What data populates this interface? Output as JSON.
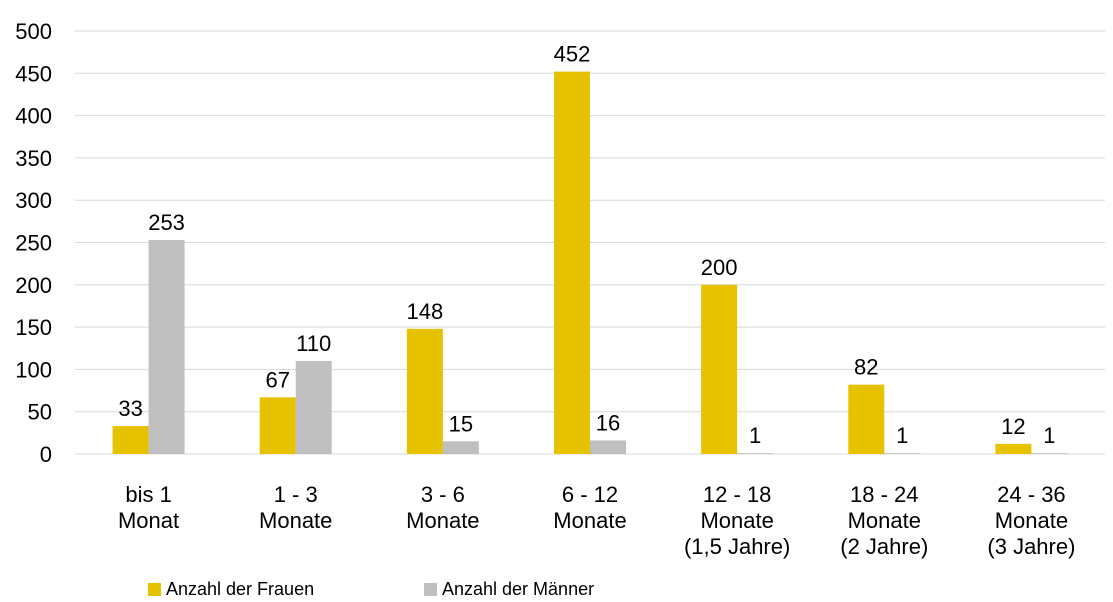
{
  "chart_data": {
    "type": "bar",
    "categories": [
      [
        "bis 1",
        "Monat"
      ],
      [
        "1 - 3",
        "Monate"
      ],
      [
        "3 - 6",
        "Monate"
      ],
      [
        "6 - 12",
        "Monate"
      ],
      [
        "12 - 18",
        "Monate",
        "(1,5 Jahre)"
      ],
      [
        "18 - 24",
        "Monate",
        "(2 Jahre)"
      ],
      [
        "24 - 36",
        "Monate",
        "(3 Jahre)"
      ]
    ],
    "series": [
      {
        "name": "Anzahl der Frauen",
        "color": "#e6c200",
        "values": [
          33,
          67,
          148,
          452,
          200,
          82,
          12
        ]
      },
      {
        "name": "Anzahl der Männer",
        "color": "#bfbfbf",
        "values": [
          253,
          110,
          15,
          16,
          1,
          1,
          1
        ]
      }
    ],
    "ylim": [
      0,
      500
    ],
    "yticks": [
      0,
      50,
      100,
      150,
      200,
      250,
      300,
      350,
      400,
      450,
      500
    ],
    "grid": true,
    "legend_position": "bottom-left"
  }
}
